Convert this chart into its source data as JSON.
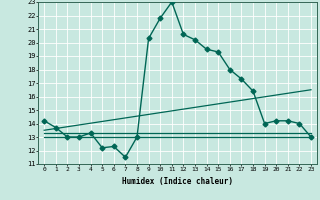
{
  "title": "",
  "xlabel": "Humidex (Indice chaleur)",
  "xlim": [
    -0.5,
    23.5
  ],
  "ylim": [
    11,
    23
  ],
  "xticks": [
    0,
    1,
    2,
    3,
    4,
    5,
    6,
    7,
    8,
    9,
    10,
    11,
    12,
    13,
    14,
    15,
    16,
    17,
    18,
    19,
    20,
    21,
    22,
    23
  ],
  "yticks": [
    11,
    12,
    13,
    14,
    15,
    16,
    17,
    18,
    19,
    20,
    21,
    22,
    23
  ],
  "bg_color": "#c8e8e0",
  "grid_color": "#ffffff",
  "line_color": "#006655",
  "series": [
    {
      "x": [
        0,
        1,
        2,
        3,
        4,
        5,
        6,
        7,
        8,
        9,
        10,
        11,
        12,
        13,
        14,
        15,
        16,
        17,
        18,
        19,
        20,
        21,
        22,
        23
      ],
      "y": [
        14.2,
        13.7,
        13.0,
        13.0,
        13.3,
        12.2,
        12.3,
        11.5,
        13.0,
        20.3,
        21.8,
        23.0,
        20.6,
        20.2,
        19.5,
        19.3,
        18.0,
        17.3,
        16.4,
        14.0,
        14.2,
        14.2,
        14.0,
        13.0
      ],
      "marker": "D",
      "markersize": 2.5,
      "linewidth": 1.0
    },
    {
      "x": [
        0,
        23
      ],
      "y": [
        13.5,
        16.5
      ],
      "marker": null,
      "markersize": 0,
      "linewidth": 0.9
    },
    {
      "x": [
        0,
        23
      ],
      "y": [
        13.3,
        13.3
      ],
      "marker": null,
      "markersize": 0,
      "linewidth": 0.9
    },
    {
      "x": [
        0,
        23
      ],
      "y": [
        13.0,
        13.0
      ],
      "marker": null,
      "markersize": 0,
      "linewidth": 0.9
    }
  ]
}
